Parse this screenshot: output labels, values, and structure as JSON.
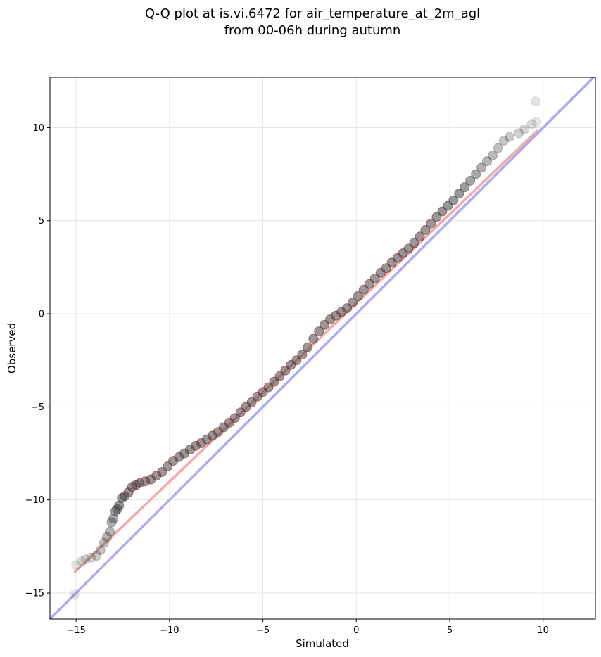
{
  "chart_data": {
    "type": "scatter",
    "title": [
      "Q-Q plot at is.vi.6472 for air_temperature_at_2m_agl",
      "from 00-06h during autumn"
    ],
    "xlabel": "Simulated",
    "ylabel": "Observed",
    "xlim": [
      -16.4,
      12.8
    ],
    "ylim": [
      -16.4,
      12.7
    ],
    "xticks": [
      -15,
      -10,
      -5,
      0,
      5,
      10
    ],
    "yticks": [
      -15,
      -10,
      -5,
      0,
      5,
      10
    ],
    "xtick_labels": [
      "−15",
      "−10",
      "−5",
      "0",
      "5",
      "10"
    ],
    "ytick_labels": [
      "−15",
      "−10",
      "−5",
      "0",
      "5",
      "10"
    ],
    "grid": true,
    "colors": {
      "points": "#404040",
      "identity_line": "#aaaaf6",
      "fit_line": "#f4a9a9",
      "inner_points_edge": "#8b1a1a",
      "frame": "#000000"
    },
    "identity_line": {
      "x": [
        -16.4,
        12.8
      ],
      "y": [
        -16.4,
        12.8
      ]
    },
    "fit_line": {
      "x": [
        -15.1,
        9.7
      ],
      "y": [
        -13.9,
        9.85
      ]
    },
    "quantiles": {
      "x": [
        -15.1,
        -15.0,
        -14.7,
        -14.5,
        -14.2,
        -13.9,
        -13.7,
        -13.5,
        -13.35,
        -13.2,
        -13.1,
        -13.0,
        -12.9,
        -12.8,
        -12.7,
        -12.55,
        -12.4,
        -12.2,
        -12.0,
        -11.8,
        -11.6,
        -11.3,
        -11.0,
        -10.7,
        -10.4,
        -10.1,
        -9.8,
        -9.5,
        -9.2,
        -8.9,
        -8.6,
        -8.3,
        -8.0,
        -7.7,
        -7.4,
        -7.1,
        -6.8,
        -6.5,
        -6.2,
        -5.9,
        -5.6,
        -5.3,
        -5.0,
        -4.7,
        -4.4,
        -4.1,
        -3.8,
        -3.5,
        -3.2,
        -2.9,
        -2.6,
        -2.3,
        -2.0,
        -1.7,
        -1.4,
        -1.1,
        -0.8,
        -0.5,
        -0.2,
        0.1,
        0.4,
        0.7,
        1.0,
        1.3,
        1.6,
        1.9,
        2.2,
        2.5,
        2.8,
        3.1,
        3.4,
        3.7,
        4.0,
        4.3,
        4.6,
        4.9,
        5.2,
        5.5,
        5.8,
        6.1,
        6.4,
        6.7,
        7.0,
        7.3,
        7.6,
        7.9,
        8.2,
        8.7,
        9.0,
        9.4,
        9.6,
        9.65
      ],
      "y": [
        -15.1,
        -13.5,
        -13.3,
        -13.2,
        -13.1,
        -13.0,
        -12.7,
        -12.3,
        -12.0,
        -11.7,
        -11.2,
        -11.0,
        -10.6,
        -10.5,
        -10.3,
        -9.9,
        -9.8,
        -9.6,
        -9.3,
        -9.2,
        -9.1,
        -9.0,
        -8.9,
        -8.7,
        -8.5,
        -8.2,
        -7.9,
        -7.7,
        -7.5,
        -7.3,
        -7.1,
        -6.95,
        -6.75,
        -6.55,
        -6.35,
        -6.1,
        -5.85,
        -5.6,
        -5.3,
        -5.0,
        -4.75,
        -4.45,
        -4.2,
        -3.95,
        -3.65,
        -3.35,
        -3.05,
        -2.75,
        -2.5,
        -2.2,
        -1.8,
        -1.35,
        -0.95,
        -0.6,
        -0.3,
        -0.1,
        0.1,
        0.3,
        0.6,
        0.95,
        1.3,
        1.6,
        1.9,
        2.2,
        2.45,
        2.75,
        3.0,
        3.25,
        3.5,
        3.8,
        4.15,
        4.5,
        4.85,
        5.2,
        5.5,
        5.8,
        6.1,
        6.45,
        6.8,
        7.15,
        7.5,
        7.85,
        8.2,
        8.5,
        8.9,
        9.3,
        9.5,
        9.7,
        9.9,
        10.2,
        11.4,
        10.3
      ]
    }
  }
}
